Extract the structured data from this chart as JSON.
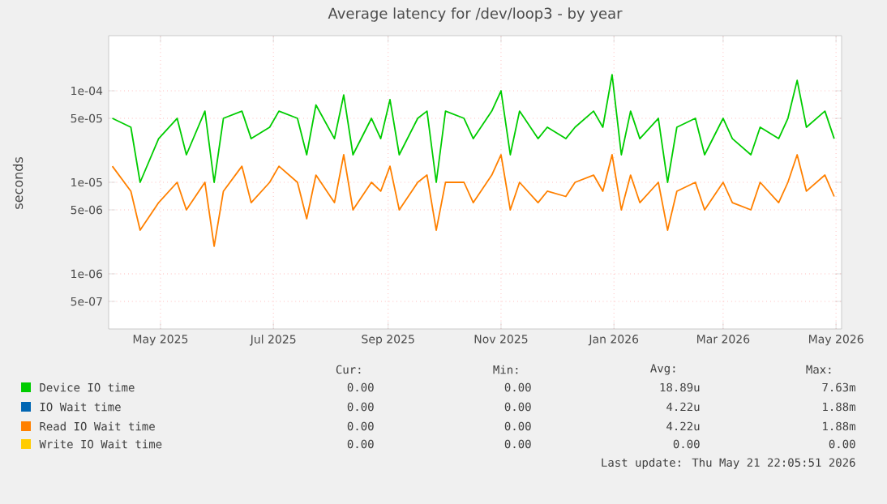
{
  "chart_data": {
    "type": "line",
    "title": "Average latency for /dev/loop3 - by year",
    "ylabel": "seconds",
    "log": "y",
    "grid": true,
    "legend": "bottom",
    "xlim": [
      "2025-04-03",
      "2026-05-04"
    ],
    "ylim": [
      2.5e-07,
      0.0004
    ],
    "xticks": [
      {
        "value": "2025-05-01",
        "label": "May 2025"
      },
      {
        "value": "2025-07-01",
        "label": "Jul 2025"
      },
      {
        "value": "2025-09-01",
        "label": "Sep 2025"
      },
      {
        "value": "2025-11-01",
        "label": "Nov 2025"
      },
      {
        "value": "2026-01-01",
        "label": "Jan 2026"
      },
      {
        "value": "2026-03-01",
        "label": "Mar 2026"
      },
      {
        "value": "2026-05-01",
        "label": "May 2026"
      }
    ],
    "yticks": [
      {
        "value": 5e-07,
        "label": "5e-07"
      },
      {
        "value": 1e-06,
        "label": "1e-06"
      },
      {
        "value": 5e-06,
        "label": "5e-06"
      },
      {
        "value": 1e-05,
        "label": "1e-05"
      },
      {
        "value": 5e-05,
        "label": "5e-05"
      },
      {
        "value": 0.0001,
        "label": "1e-04"
      }
    ],
    "x": [
      "2025-04-05",
      "2025-04-10",
      "2025-04-15",
      "2025-04-20",
      "2025-04-25",
      "2025-04-30",
      "2025-05-05",
      "2025-05-10",
      "2025-05-15",
      "2025-05-20",
      "2025-05-25",
      "2025-05-30",
      "2025-06-04",
      "2025-06-09",
      "2025-06-14",
      "2025-06-19",
      "2025-06-24",
      "2025-06-29",
      "2025-07-04",
      "2025-07-09",
      "2025-07-14",
      "2025-07-19",
      "2025-07-24",
      "2025-07-29",
      "2025-08-03",
      "2025-08-08",
      "2025-08-13",
      "2025-08-18",
      "2025-08-23",
      "2025-08-28",
      "2025-09-02",
      "2025-09-07",
      "2025-09-12",
      "2025-09-17",
      "2025-09-22",
      "2025-09-27",
      "2025-10-02",
      "2025-10-07",
      "2025-10-12",
      "2025-10-17",
      "2025-10-22",
      "2025-10-27",
      "2025-11-01",
      "2025-11-06",
      "2025-11-11",
      "2025-11-16",
      "2025-11-21",
      "2025-11-26",
      "2025-12-01",
      "2025-12-06",
      "2025-12-11",
      "2025-12-16",
      "2025-12-21",
      "2025-12-26",
      "2025-12-31",
      "2026-01-05",
      "2026-01-10",
      "2026-01-15",
      "2026-01-20",
      "2026-01-25",
      "2026-01-30",
      "2026-02-04",
      "2026-02-09",
      "2026-02-14",
      "2026-02-19",
      "2026-02-24",
      "2026-03-01",
      "2026-03-06",
      "2026-03-11",
      "2026-03-16",
      "2026-03-21",
      "2026-03-26",
      "2026-03-31",
      "2026-04-05",
      "2026-04-10",
      "2026-04-15",
      "2026-04-20",
      "2026-04-25",
      "2026-04-30"
    ],
    "series": [
      {
        "name": "Device IO time",
        "color": "#00cc00",
        "values": [
          5e-05,
          null,
          4e-05,
          1e-05,
          null,
          3e-05,
          null,
          5e-05,
          2e-05,
          null,
          6e-05,
          1e-05,
          5e-05,
          null,
          6e-05,
          3e-05,
          null,
          4e-05,
          6e-05,
          null,
          5e-05,
          2e-05,
          7e-05,
          null,
          3e-05,
          9e-05,
          2e-05,
          null,
          5e-05,
          3e-05,
          8e-05,
          2e-05,
          null,
          5e-05,
          6e-05,
          1e-05,
          6e-05,
          null,
          5e-05,
          3e-05,
          null,
          6e-05,
          0.0001,
          2e-05,
          6e-05,
          null,
          3e-05,
          4e-05,
          null,
          3e-05,
          4e-05,
          null,
          6e-05,
          4e-05,
          0.00015,
          2e-05,
          6e-05,
          3e-05,
          null,
          5e-05,
          1e-05,
          4e-05,
          null,
          5e-05,
          2e-05,
          null,
          5e-05,
          3e-05,
          null,
          2e-05,
          4e-05,
          null,
          3e-05,
          5e-05,
          0.00013,
          4e-05,
          null,
          6e-05,
          3e-05
        ]
      },
      {
        "name": "IO Wait time",
        "color": "#0066b3",
        "values": [
          null,
          null,
          null,
          null,
          null,
          null,
          null,
          null,
          null,
          null,
          null,
          null,
          null,
          null,
          null,
          null,
          null,
          null,
          null,
          null,
          null,
          null,
          null,
          null,
          null,
          null,
          null,
          null,
          null,
          null,
          null,
          null,
          null,
          null,
          null,
          null,
          null,
          null,
          null,
          null,
          null,
          null,
          null,
          null,
          null,
          null,
          null,
          null,
          null,
          null,
          null,
          null,
          null,
          null,
          null,
          null,
          null,
          null,
          null,
          null,
          null,
          null,
          null,
          null,
          null,
          null,
          null,
          null,
          null,
          null,
          null,
          null,
          null,
          null,
          null,
          null,
          null,
          null,
          null
        ]
      },
      {
        "name": "Read IO Wait time",
        "color": "#ff8000",
        "values": [
          1.5e-05,
          null,
          8e-06,
          3e-06,
          null,
          6e-06,
          null,
          1e-05,
          5e-06,
          null,
          1e-05,
          2e-06,
          8e-06,
          null,
          1.5e-05,
          6e-06,
          null,
          1e-05,
          1.5e-05,
          null,
          1e-05,
          4e-06,
          1.2e-05,
          null,
          6e-06,
          2e-05,
          5e-06,
          null,
          1e-05,
          8e-06,
          1.5e-05,
          5e-06,
          null,
          1e-05,
          1.2e-05,
          3e-06,
          1e-05,
          null,
          1e-05,
          6e-06,
          null,
          1.2e-05,
          2e-05,
          5e-06,
          1e-05,
          null,
          6e-06,
          8e-06,
          null,
          7e-06,
          1e-05,
          null,
          1.2e-05,
          8e-06,
          2e-05,
          5e-06,
          1.2e-05,
          6e-06,
          null,
          1e-05,
          3e-06,
          8e-06,
          null,
          1e-05,
          5e-06,
          null,
          1e-05,
          6e-06,
          null,
          5e-06,
          1e-05,
          null,
          6e-06,
          1e-05,
          2e-05,
          8e-06,
          null,
          1.2e-05,
          7e-06
        ]
      },
      {
        "name": "Write IO Wait time",
        "color": "#ffcc00",
        "values": [
          null,
          null,
          null,
          null,
          null,
          null,
          null,
          null,
          null,
          null,
          null,
          null,
          null,
          null,
          null,
          null,
          null,
          null,
          null,
          null,
          null,
          null,
          null,
          null,
          null,
          null,
          null,
          null,
          null,
          null,
          null,
          null,
          null,
          null,
          null,
          null,
          null,
          null,
          null,
          null,
          null,
          null,
          null,
          null,
          null,
          null,
          null,
          null,
          null,
          null,
          null,
          null,
          null,
          null,
          null,
          null,
          null,
          null,
          null,
          null,
          null,
          null,
          null,
          null,
          null,
          null,
          null,
          null,
          null,
          null,
          null,
          null,
          null,
          null,
          null,
          null,
          null,
          null,
          null
        ]
      }
    ],
    "annotations": [
      "Cur:",
      "Min:",
      "Avg:",
      "Max:",
      "0.00",
      "0.00",
      "18.89u",
      "7.63m",
      "0.00",
      "0.00",
      "4.22u",
      "1.88m",
      "0.00",
      "0.00",
      "4.22u",
      "1.88m",
      "0.00",
      "0.00",
      "0.00",
      "0.00",
      "Last update: Thu May 21 22:05:51 2026"
    ]
  }
}
